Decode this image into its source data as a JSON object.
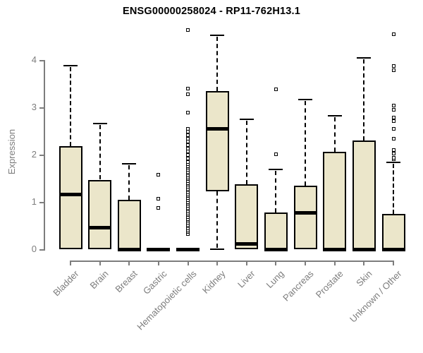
{
  "chart_data": {
    "type": "boxplot",
    "title": "ENSG00000258024 - RP11-762H13.1",
    "ylabel": "Expression",
    "xlabel": "",
    "ylim": [
      0,
      4.7
    ],
    "yticks": [
      0,
      1,
      2,
      3,
      4
    ],
    "grid": false,
    "legend": false,
    "categories": [
      "Bladder",
      "Brain",
      "Breast",
      "Gastric",
      "Hematopoietic cells",
      "Kidney",
      "Liver",
      "Lung",
      "Pancreas",
      "Prostate",
      "Skin",
      "Unknown / Other"
    ],
    "series": [
      {
        "name": "Bladder",
        "lo": 0,
        "q1": 0,
        "med": 1.17,
        "q3": 2.18,
        "hi": 3.88,
        "outliers": []
      },
      {
        "name": "Brain",
        "lo": 0,
        "q1": 0,
        "med": 0.47,
        "q3": 1.47,
        "hi": 2.65,
        "outliers": []
      },
      {
        "name": "Breast",
        "lo": 0,
        "q1": 0,
        "med": 0.0,
        "q3": 1.05,
        "hi": 1.8,
        "outliers": []
      },
      {
        "name": "Gastric",
        "lo": 0,
        "q1": 0,
        "med": 0.0,
        "q3": 0,
        "hi": 0,
        "outliers": [
          0.87,
          1.06,
          1.58
        ]
      },
      {
        "name": "Hematopoietic cells",
        "lo": 0,
        "q1": 0,
        "med": 0.0,
        "q3": 0,
        "hi": 0,
        "outliers": [
          0.32,
          0.36,
          0.4,
          0.44,
          0.48,
          0.52,
          0.56,
          0.6,
          0.64,
          0.68,
          0.72,
          0.76,
          0.8,
          0.84,
          0.88,
          0.92,
          0.96,
          1.0,
          1.04,
          1.08,
          1.12,
          1.16,
          1.2,
          1.24,
          1.28,
          1.32,
          1.36,
          1.4,
          1.44,
          1.48,
          1.52,
          1.56,
          1.6,
          1.64,
          1.68,
          1.72,
          1.76,
          1.8,
          1.84,
          1.92,
          1.99,
          2.06,
          2.13,
          2.2,
          2.27,
          2.34,
          2.41,
          2.48,
          2.55,
          2.89,
          3.28,
          3.4,
          4.63
        ]
      },
      {
        "name": "Kidney",
        "lo": 0,
        "q1": 1.22,
        "med": 2.55,
        "q3": 3.35,
        "hi": 4.52,
        "outliers": []
      },
      {
        "name": "Liver",
        "lo": 0,
        "q1": 0,
        "med": 0.12,
        "q3": 1.37,
        "hi": 2.75,
        "outliers": []
      },
      {
        "name": "Lung",
        "lo": 0,
        "q1": 0,
        "med": 0.0,
        "q3": 0.78,
        "hi": 1.69,
        "outliers": [
          2.01,
          3.38
        ]
      },
      {
        "name": "Pancreas",
        "lo": 0,
        "q1": 0,
        "med": 0.78,
        "q3": 1.35,
        "hi": 3.17,
        "outliers": []
      },
      {
        "name": "Prostate",
        "lo": 0,
        "q1": 0,
        "med": 0.0,
        "q3": 2.06,
        "hi": 2.82,
        "outliers": []
      },
      {
        "name": "Skin",
        "lo": 0,
        "q1": 0,
        "med": 0.0,
        "q3": 2.3,
        "hi": 4.05,
        "outliers": []
      },
      {
        "name": "Unknown / Other",
        "lo": 0,
        "q1": 0,
        "med": 0.0,
        "q3": 0.74,
        "hi": 1.84,
        "outliers": [
          1.9,
          1.94,
          2.02,
          2.1,
          2.33,
          2.55,
          2.71,
          2.79,
          2.95,
          3.03,
          3.78,
          3.88,
          4.55
        ]
      }
    ],
    "colors": {
      "background": "#FFFFFF",
      "box_fill": "#EBE6CA",
      "box_border": "#000000",
      "median": "#000000",
      "whisker": "#000000",
      "outlier_border": "#000000",
      "axis": "#7D7D7D",
      "tick_label": "#7D7D7D",
      "title": "#000000"
    }
  }
}
